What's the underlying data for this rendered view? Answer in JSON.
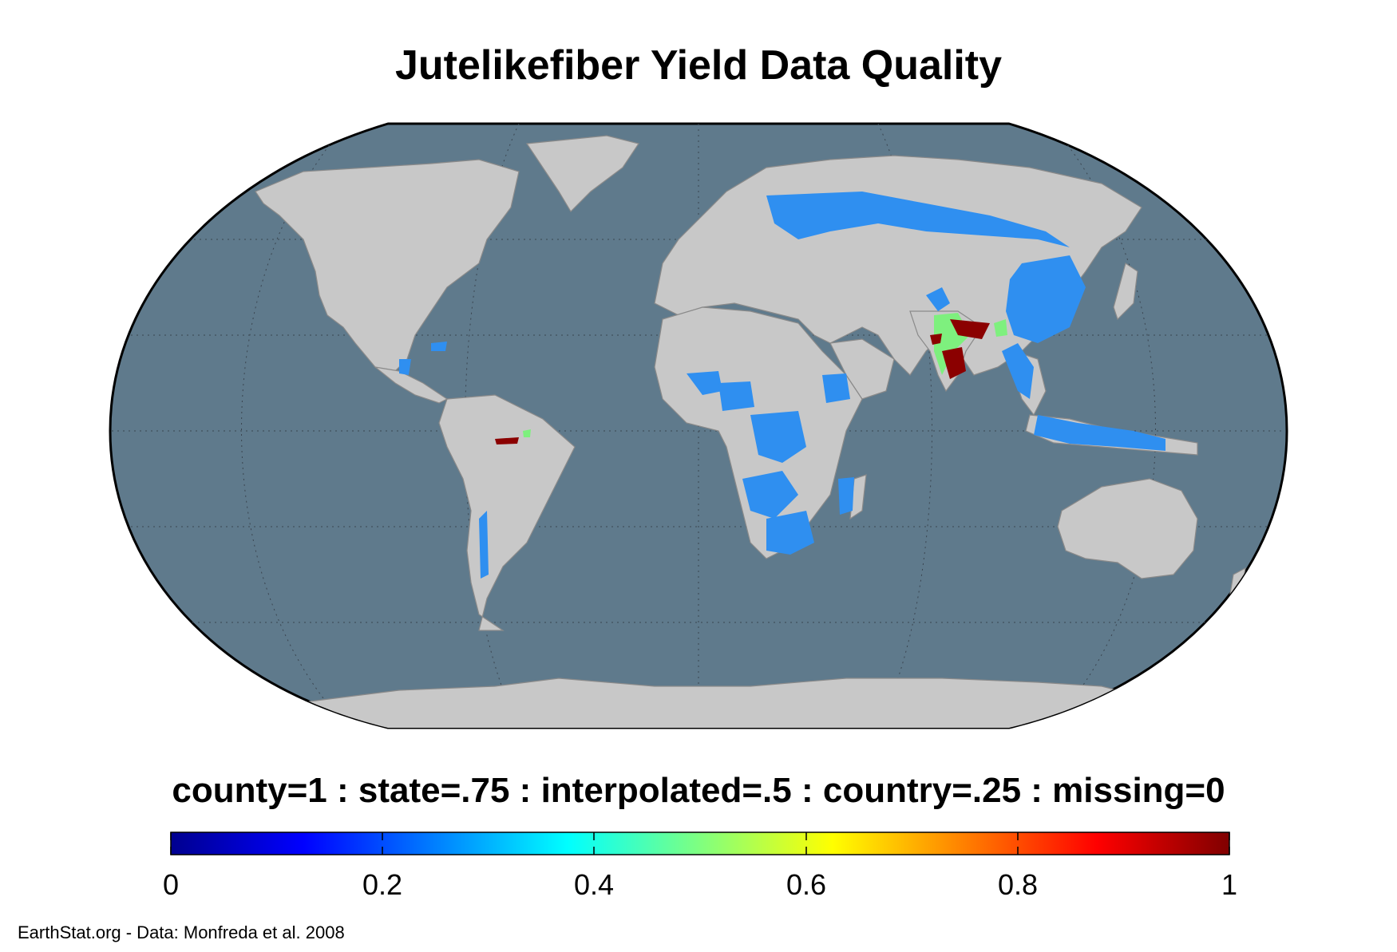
{
  "title": "Jutelikefiber Yield Data Quality",
  "legend": {
    "description": "county=1 : state=.75 : interpolated=.5 : country=.25 : missing=0",
    "ticks": [
      "0",
      "0.2",
      "0.4",
      "0.6",
      "0.8",
      "1"
    ],
    "range": [
      0,
      1
    ],
    "colormap": "jet"
  },
  "credit": "EarthStat.org - Data: Monfreda et al. 2008",
  "colors": {
    "ocean": "#5f7a8c",
    "land": "#c8c8c8",
    "border": "#8a8a8a",
    "country_level": "#2f8ff0",
    "interpolated": "#7ef07e",
    "county_level": "#8b0000"
  },
  "map": {
    "projection": "Robinson",
    "graticule": "dotted"
  }
}
